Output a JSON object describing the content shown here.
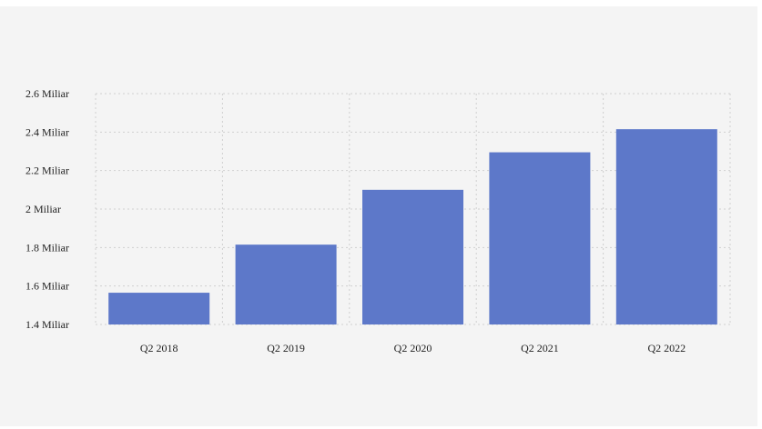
{
  "chart_data": {
    "type": "bar",
    "categories": [
      "Q2 2018",
      "Q2 2019",
      "Q2 2020",
      "Q2 2021",
      "Q2 2022"
    ],
    "values": [
      1.565,
      1.815,
      2.1,
      2.295,
      2.415
    ],
    "title": "",
    "xlabel": "",
    "ylabel": "",
    "ylim": [
      1.4,
      2.6
    ],
    "y_ticks": [
      1.4,
      1.6,
      1.8,
      2.0,
      2.2,
      2.4,
      2.6
    ],
    "y_tick_labels": [
      "1.4 Miliar",
      "1.6 Miliar",
      "1.8 Miliar",
      "2 Miliar",
      "2.2 Miliar",
      "2.4 Miliar",
      "2.6 Miliar"
    ],
    "grid": true,
    "bar_color": "#5d78c9",
    "background_color": "#f4f4f4"
  }
}
